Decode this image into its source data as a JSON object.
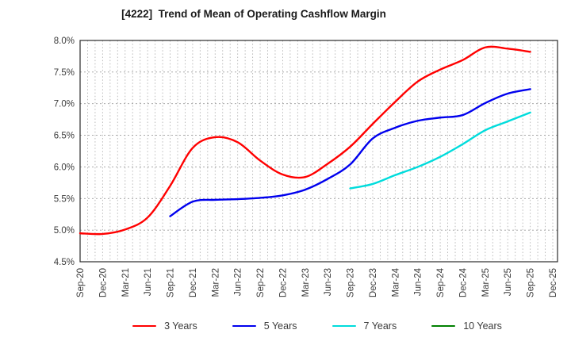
{
  "chart_data": {
    "type": "line",
    "title": "[4222]  Trend of Mean of Operating Cashflow Margin",
    "xlabel": "",
    "ylabel": "",
    "unit": "%",
    "ylim": [
      4.5,
      8.0
    ],
    "grid": "dotted, monthly vertical + 0.5% horizontal",
    "legend_position": "bottom-center",
    "categories": [
      "Sep-20",
      "Dec-20",
      "Mar-21",
      "Jun-21",
      "Sep-21",
      "Dec-21",
      "Mar-22",
      "Jun-22",
      "Sep-22",
      "Dec-22",
      "Mar-23",
      "Jun-23",
      "Sep-23",
      "Dec-23",
      "Mar-24",
      "Jun-24",
      "Sep-24",
      "Dec-24",
      "Mar-25",
      "Jun-25",
      "Sep-25",
      "Dec-25"
    ],
    "y_ticks": [
      {
        "value": 4.5,
        "label": "4.5%"
      },
      {
        "value": 5.0,
        "label": "5.0%"
      },
      {
        "value": 5.5,
        "label": "5.5%"
      },
      {
        "value": 6.0,
        "label": "6.0%"
      },
      {
        "value": 6.5,
        "label": "6.5%"
      },
      {
        "value": 7.0,
        "label": "7.0%"
      },
      {
        "value": 7.5,
        "label": "7.5%"
      },
      {
        "value": 8.0,
        "label": "8.0%"
      }
    ],
    "series": [
      {
        "name": "3 Years",
        "color": "#ff0000",
        "start_index": 0,
        "values": [
          4.95,
          4.94,
          5.01,
          5.2,
          5.7,
          6.3,
          6.47,
          6.39,
          6.1,
          5.88,
          5.84,
          6.05,
          6.32,
          6.68,
          7.03,
          7.35,
          7.54,
          7.69,
          7.89,
          7.87,
          7.82
        ]
      },
      {
        "name": "5 Years",
        "color": "#0000ee",
        "start_index": 4,
        "values": [
          5.22,
          5.45,
          5.48,
          5.49,
          5.51,
          5.55,
          5.64,
          5.81,
          6.04,
          6.45,
          6.62,
          6.73,
          6.78,
          6.82,
          7.01,
          7.16,
          7.23
        ]
      },
      {
        "name": "7 Years",
        "color": "#00dcdc",
        "start_index": 12,
        "values": [
          5.66,
          5.73,
          5.87,
          6.0,
          6.16,
          6.36,
          6.58,
          6.72,
          6.86
        ]
      },
      {
        "name": "10 Years",
        "color": "#008000",
        "start_index": 0,
        "values": []
      }
    ],
    "colors": {
      "frame": "#2b2b2b",
      "grid": "#b3b3b3",
      "tick_label": "#3b3b3b",
      "title_text": "#1a1a1a"
    }
  }
}
